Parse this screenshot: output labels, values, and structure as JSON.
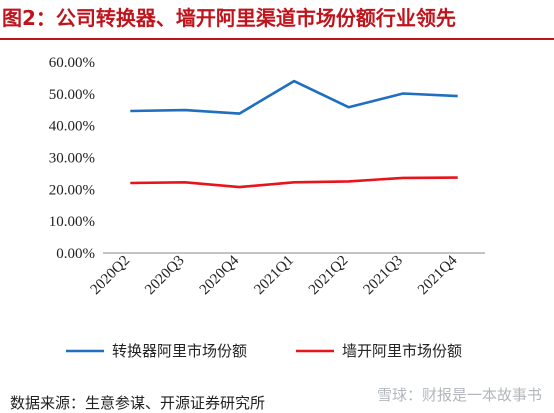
{
  "title": "图2：公司转换器、墙开阿里渠道市场份额行业领先",
  "source": "数据来源：生意参谋、开源证券研究所",
  "watermark": "雪球：财报是一本故事书",
  "chart_data": {
    "type": "line",
    "categories": [
      "2020Q2",
      "2020Q3",
      "2020Q4",
      "2021Q1",
      "2021Q2",
      "2021Q3",
      "2021Q4"
    ],
    "series": [
      {
        "name": "转换器阿里市场份额",
        "color": "#1f6ebf",
        "values": [
          0.446,
          0.449,
          0.438,
          0.54,
          0.458,
          0.501,
          0.493
        ]
      },
      {
        "name": "墙开阿里市场份额",
        "color": "#e8141c",
        "values": [
          0.22,
          0.222,
          0.207,
          0.222,
          0.225,
          0.236,
          0.237
        ]
      }
    ],
    "yticks": [
      "0.00%",
      "10.00%",
      "20.00%",
      "30.00%",
      "40.00%",
      "50.00%",
      "60.00%"
    ],
    "ylim": [
      0,
      0.6
    ],
    "grid": false,
    "legend_position": "bottom"
  }
}
